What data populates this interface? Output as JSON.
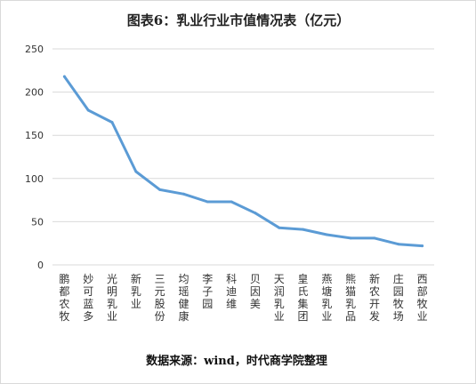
{
  "chart_data": {
    "type": "line",
    "title": "图表6：乳业行业市值情况表（亿元）",
    "source": "数据来源：wind，时代商学院整理",
    "categories": [
      "鹏都农牧",
      "妙可蓝多",
      "光明乳业",
      "新乳业",
      "三元股份",
      "均瑶健康",
      "李子园",
      "科迪维",
      "贝因美",
      "天润乳业",
      "皇氏集团",
      "燕塘乳业",
      "熊猫乳品",
      "新农开发",
      "庄园牧场",
      "西部牧业"
    ],
    "series": [
      {
        "values": [
          218,
          179,
          165,
          108,
          87,
          82,
          73,
          73,
          60,
          43,
          41,
          35,
          31,
          31,
          24,
          22
        ]
      }
    ],
    "ylim": [
      0,
      250
    ],
    "yticks": [
      0,
      50,
      100,
      150,
      200,
      250
    ],
    "grid": true,
    "line_color": "#5b9bd5",
    "grid_color": "#d9d9d9"
  }
}
